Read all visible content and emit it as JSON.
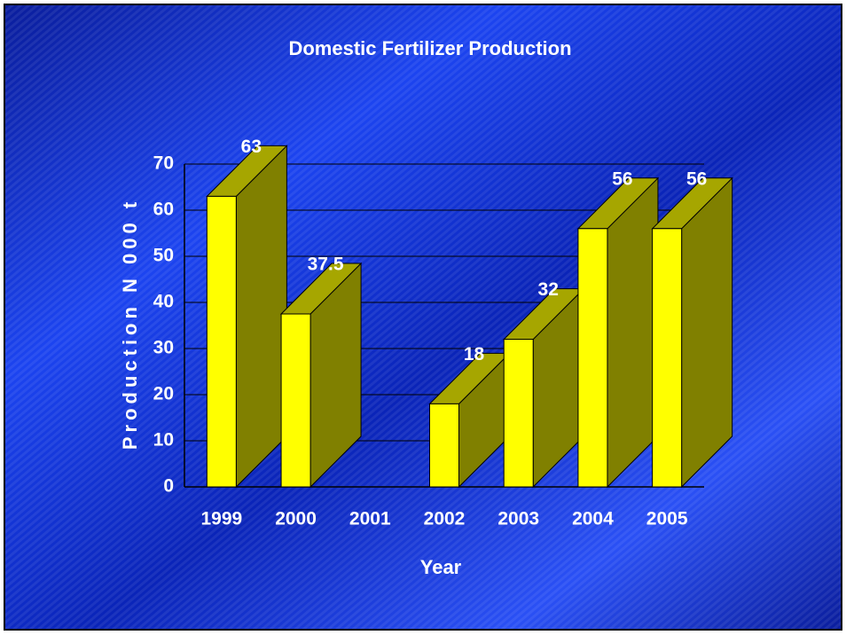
{
  "chart_data": {
    "type": "bar3d",
    "title": "Domestic Fertilizer Production",
    "x_label": "Year",
    "y_label": "Production N 000 t",
    "categories": [
      "1999",
      "2000",
      "2001",
      "2002",
      "2003",
      "2004",
      "2005"
    ],
    "values": [
      63,
      37.5,
      null,
      18,
      32,
      56,
      56
    ],
    "color": "#ffff00",
    "side_color": "#808000",
    "top_color": "#a6a600",
    "ylim": [
      0,
      70
    ],
    "yticks": [
      0,
      10,
      20,
      30,
      40,
      50,
      60,
      70
    ],
    "grid": true
  }
}
